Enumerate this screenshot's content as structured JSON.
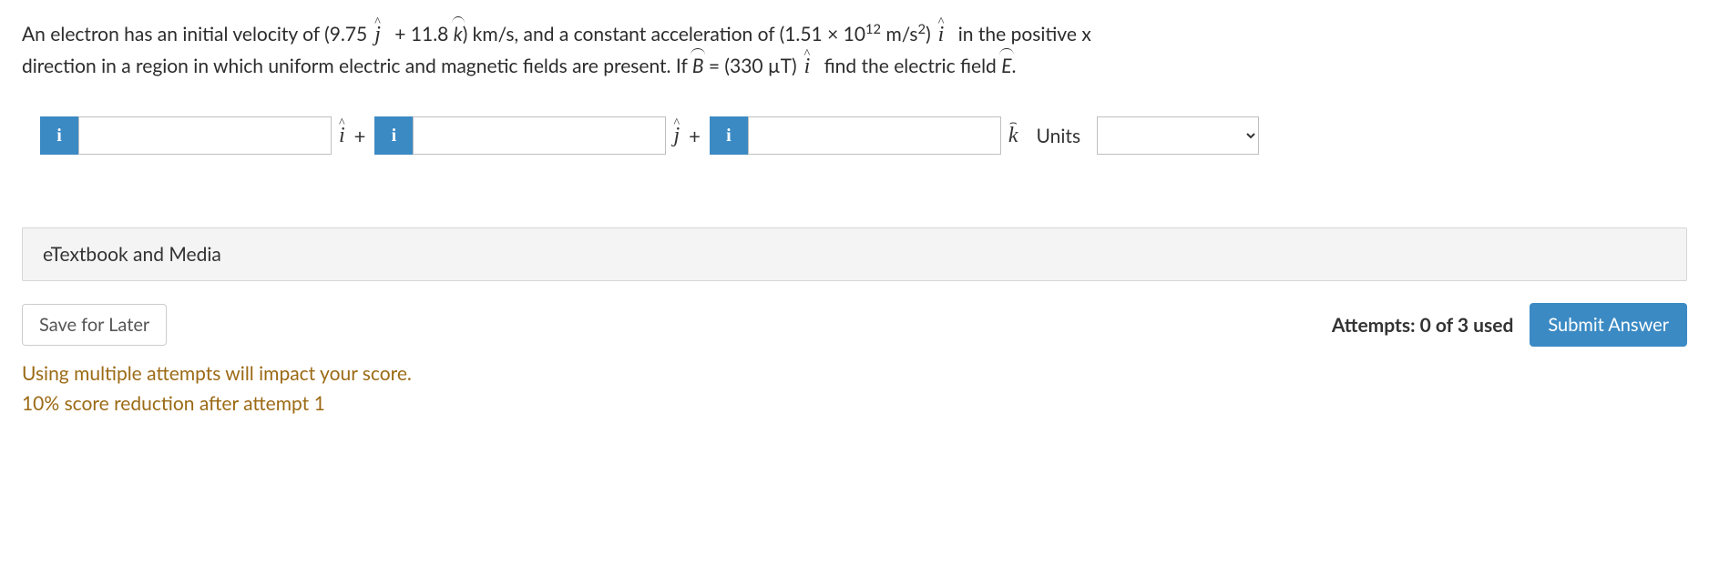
{
  "question": {
    "line1_pre": "An electron has an initial velocity of (9.75",
    "jhat": "j",
    "line1_mid1": " + 11.8 ",
    "khat": "k",
    "line1_mid2": ") km/s, and a constant acceleration of (1.51 × 10",
    "exp1": "12",
    "line1_mid3": " m/s",
    "exp2": "2",
    "line1_mid4": ")",
    "ihat": "i",
    "line1_end": " in the positive x",
    "line2_pre": "direction in a region in which uniform electric and magnetic fields are present. If ",
    "Bsym": "B",
    "line2_mid1": " = (330 µT)",
    "line2_mid2": " find the electric field ",
    "Esym": "E",
    "line2_end": "."
  },
  "inputs": {
    "i_value": "",
    "j_value": "",
    "k_value": "",
    "units_value": ""
  },
  "vectors": {
    "i": "i",
    "j": "j",
    "k": "k",
    "plus": "+"
  },
  "labels": {
    "info": "i",
    "units": "Units",
    "etextbook": "eTextbook and Media",
    "save_later": "Save for Later",
    "attempts": "Attempts: 0 of 3 used",
    "submit": "Submit Answer"
  },
  "warnings": {
    "line1": "Using multiple attempts will impact your score.",
    "line2": "10% score reduction after attempt 1"
  },
  "colors": {
    "accent": "#3b8ac4",
    "warning": "#9b6a15",
    "border": "#bfbfbf",
    "panel_bg": "#f4f4f4"
  }
}
